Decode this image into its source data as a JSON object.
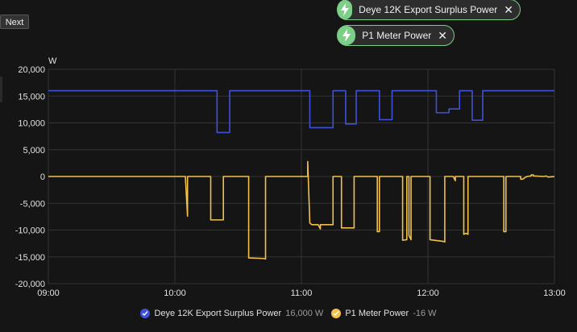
{
  "toolbar": {
    "next_label": "Next"
  },
  "chips": [
    {
      "label": "Deye 12K Export Surplus Power",
      "icon": "lightning-bolt-icon"
    },
    {
      "label": "P1 Meter Power",
      "icon": "lightning-bolt-icon"
    }
  ],
  "legend": [
    {
      "name": "Deye 12K Export Surplus Power",
      "value": "16,000 W",
      "color": "#3f51d8"
    },
    {
      "name": "P1 Meter Power",
      "value": "-16 W",
      "color": "#f2c14b"
    }
  ],
  "chart_data": {
    "type": "line",
    "title": "",
    "xlabel": "",
    "ylabel": "W",
    "xlim": [
      "09:00",
      "13:00"
    ],
    "ylim": [
      -20000,
      20000
    ],
    "x_ticks": [
      "09:00",
      "10:00",
      "11:00",
      "12:00",
      "13:00"
    ],
    "y_ticks": [
      "20,000",
      "15,000",
      "10,000",
      "5,000",
      "0",
      "-5,000",
      "-10,000",
      "-15,000",
      "-20,000"
    ],
    "grid": true,
    "legend_position": "bottom",
    "series": [
      {
        "name": "Deye 12K Export Surplus Power",
        "color": "#3f51d8",
        "step": true,
        "points": [
          [
            "09:00",
            16000
          ],
          [
            "10:20",
            16000
          ],
          [
            "10:20",
            8200
          ],
          [
            "10:26",
            8200
          ],
          [
            "10:26",
            16000
          ],
          [
            "11:04",
            16000
          ],
          [
            "11:04",
            9100
          ],
          [
            "11:15",
            9100
          ],
          [
            "11:15",
            16000
          ],
          [
            "11:21",
            16000
          ],
          [
            "11:21",
            9800
          ],
          [
            "11:26",
            9800
          ],
          [
            "11:26",
            16000
          ],
          [
            "11:37",
            16000
          ],
          [
            "11:37",
            10600
          ],
          [
            "11:43",
            10600
          ],
          [
            "11:43",
            16000
          ],
          [
            "12:04",
            16000
          ],
          [
            "12:04",
            11900
          ],
          [
            "12:10",
            11900
          ],
          [
            "12:10",
            12600
          ],
          [
            "12:15",
            12600
          ],
          [
            "12:15",
            16000
          ],
          [
            "12:21",
            16000
          ],
          [
            "12:21",
            10500
          ],
          [
            "12:26",
            10500
          ],
          [
            "12:26",
            16000
          ],
          [
            "13:00",
            16000
          ]
        ]
      },
      {
        "name": "P1 Meter Power",
        "color": "#f2c14b",
        "step": false,
        "points": [
          [
            "09:00",
            0
          ],
          [
            "10:05",
            0
          ],
          [
            "10:05",
            -200
          ],
          [
            "10:06",
            -7400
          ],
          [
            "10:06",
            -200
          ],
          [
            "10:06",
            0
          ],
          [
            "10:17",
            0
          ],
          [
            "10:17",
            -8100
          ],
          [
            "10:23",
            -8100
          ],
          [
            "10:23",
            0
          ],
          [
            "10:35",
            0
          ],
          [
            "10:35",
            -15200
          ],
          [
            "10:42",
            -15300
          ],
          [
            "10:43",
            -15400
          ],
          [
            "10:43",
            0
          ],
          [
            "11:03",
            0
          ],
          [
            "11:03",
            2800
          ],
          [
            "11:04",
            -8700
          ],
          [
            "11:05",
            -9000
          ],
          [
            "11:08",
            -9000
          ],
          [
            "11:09",
            -9800
          ],
          [
            "11:09",
            -9000
          ],
          [
            "11:15",
            -9000
          ],
          [
            "11:15",
            0
          ],
          [
            "11:19",
            0
          ],
          [
            "11:19",
            -9600
          ],
          [
            "11:25",
            -9600
          ],
          [
            "11:25",
            0
          ],
          [
            "11:25",
            -4500
          ],
          [
            "11:25",
            0
          ],
          [
            "11:36",
            0
          ],
          [
            "11:36",
            -10300
          ],
          [
            "11:37",
            -10300
          ],
          [
            "11:37",
            0
          ],
          [
            "11:48",
            0
          ],
          [
            "11:48",
            -11900
          ],
          [
            "11:50",
            -11800
          ],
          [
            "11:50",
            0
          ],
          [
            "11:51",
            0
          ],
          [
            "11:51",
            -11000
          ],
          [
            "11:52",
            -11800
          ],
          [
            "11:52",
            0
          ],
          [
            "12:01",
            0
          ],
          [
            "12:01",
            -11800
          ],
          [
            "12:05",
            -12000
          ],
          [
            "12:07",
            -12100
          ],
          [
            "12:08",
            -12200
          ],
          [
            "12:08",
            0
          ],
          [
            "12:12",
            0
          ],
          [
            "12:13",
            -800
          ],
          [
            "12:13",
            0
          ],
          [
            "12:17",
            0
          ],
          [
            "12:17",
            -10800
          ],
          [
            "12:18",
            -10600
          ],
          [
            "12:19",
            -10800
          ],
          [
            "12:19",
            0
          ],
          [
            "12:36",
            0
          ],
          [
            "12:36",
            -10300
          ],
          [
            "12:37",
            -10300
          ],
          [
            "12:37",
            0
          ],
          [
            "12:44",
            0
          ],
          [
            "12:44",
            -500
          ],
          [
            "12:45",
            -500
          ],
          [
            "12:46",
            -200
          ],
          [
            "12:47",
            0
          ],
          [
            "12:49",
            100
          ],
          [
            "12:49",
            300
          ],
          [
            "12:50",
            300
          ],
          [
            "12:50",
            100
          ],
          [
            "12:55",
            0
          ],
          [
            "12:56",
            100
          ],
          [
            "12:57",
            -100
          ],
          [
            "13:00",
            -16
          ]
        ]
      }
    ]
  }
}
